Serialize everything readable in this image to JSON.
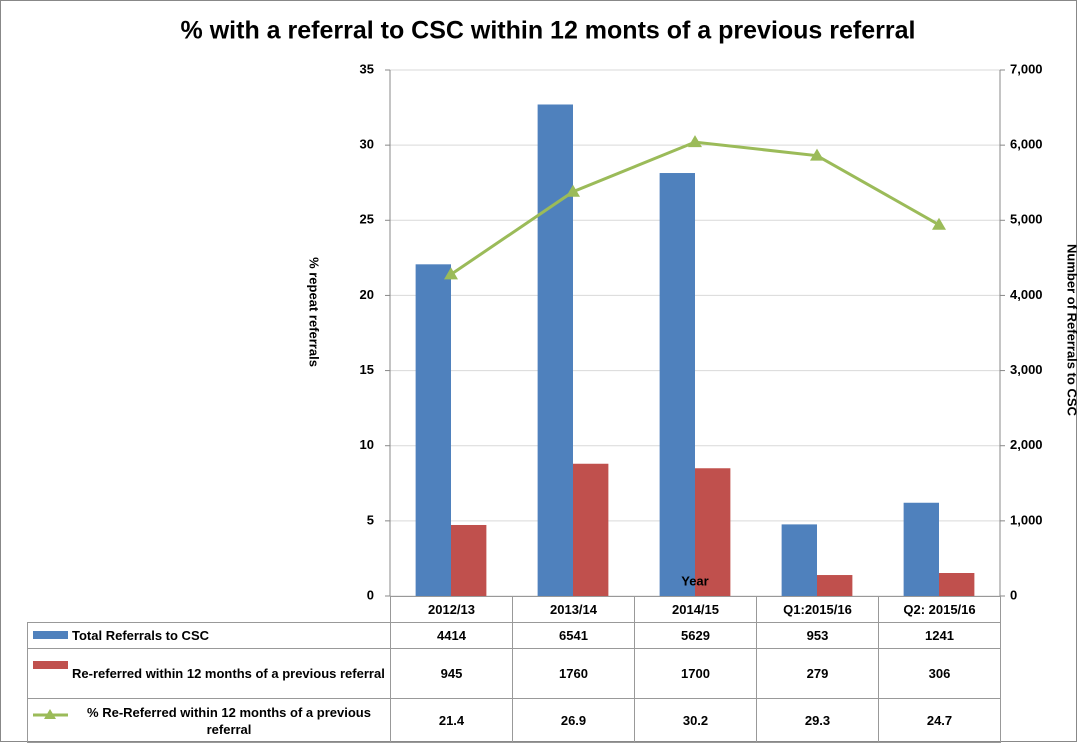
{
  "chart_data": {
    "type": "bar",
    "title": "% with a referral to CSC within 12 monts of a previous referral",
    "y_label": "% repeat referrals",
    "y2_label": "Number of Referrals to CSC",
    "x_label": "Year",
    "categories": [
      "2012/13",
      "2013/14",
      "2014/15",
      "Q1:2015/16",
      "Q2: 2015/16"
    ],
    "series": [
      {
        "name": "Total Referrals to CSC",
        "type": "bar",
        "axis": "y2",
        "color": "#4f81bd",
        "values": [
          4414,
          6541,
          5629,
          953,
          1241
        ]
      },
      {
        "name": "Re-referred within 12 months of a previous referral",
        "type": "bar",
        "axis": "y2",
        "color": "#c0504d",
        "values": [
          945,
          1760,
          1700,
          279,
          306
        ]
      },
      {
        "name": "% Re-Referred within 12 months of a previous referral",
        "type": "line",
        "color": "#9bbb59",
        "values": [
          21.4,
          26.9,
          30.2,
          29.3,
          24.7
        ]
      }
    ],
    "ylim": [
      0,
      35
    ],
    "yticks": [
      0,
      5,
      10,
      15,
      20,
      25,
      30,
      35
    ],
    "y2lim": [
      0,
      7000
    ],
    "y2ticks": [
      0,
      {
        "value": 1000,
        "label": "1,000"
      },
      {
        "value": 2000,
        "label": "2,000"
      },
      {
        "value": 3000,
        "label": "3,000"
      },
      {
        "value": 4000,
        "label": "4,000"
      },
      {
        "value": 5000,
        "label": "5,000"
      },
      {
        "value": 6000,
        "label": "6,000"
      },
      {
        "value": 7000,
        "label": "7,000"
      }
    ],
    "grid": true,
    "data_table": true
  }
}
